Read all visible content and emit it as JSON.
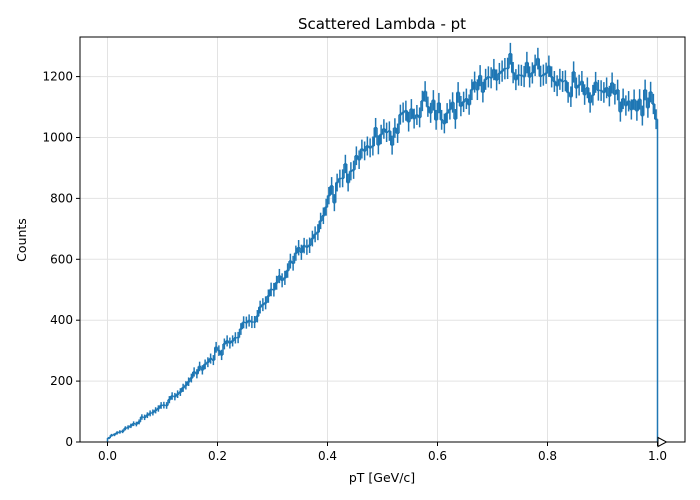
{
  "chart_data": {
    "type": "histogram",
    "title": "Scattered Lambda - pt",
    "xlabel": "pT [GeV/c]",
    "ylabel": "Counts",
    "xlim": [
      -0.05,
      1.05
    ],
    "ylim": [
      0,
      1330
    ],
    "x_ticks": [
      0.0,
      0.2,
      0.4,
      0.6,
      0.8,
      1.0
    ],
    "x_tick_labels": [
      "0.0",
      "0.2",
      "0.4",
      "0.6",
      "0.8",
      "1.0"
    ],
    "y_ticks": [
      0,
      200,
      400,
      600,
      800,
      1000,
      1200
    ],
    "y_tick_labels": [
      "0",
      "200",
      "400",
      "600",
      "800",
      "1000",
      "1200"
    ],
    "grid": true,
    "color": "#1f77b4",
    "overflow_marker": "open triangle at x = 1.0 on the x axis",
    "bins": {
      "start": 0.0,
      "end": 1.0,
      "count": 200,
      "anchor_x": [
        0.0,
        0.02,
        0.05,
        0.08,
        0.1,
        0.13,
        0.15,
        0.18,
        0.2,
        0.23,
        0.25,
        0.28,
        0.3,
        0.33,
        0.35,
        0.38,
        0.4,
        0.42,
        0.44,
        0.46,
        0.48,
        0.5,
        0.52,
        0.54,
        0.56,
        0.58,
        0.6,
        0.62,
        0.65,
        0.68,
        0.7,
        0.72,
        0.75,
        0.78,
        0.8,
        0.83,
        0.85,
        0.88,
        0.9,
        0.93,
        0.95,
        0.97,
        0.99,
        1.0
      ],
      "anchor_counts": [
        10,
        30,
        60,
        95,
        125,
        160,
        200,
        260,
        290,
        340,
        385,
        440,
        500,
        575,
        630,
        660,
        790,
        840,
        900,
        950,
        980,
        1000,
        1020,
        1050,
        1080,
        1110,
        1100,
        1090,
        1140,
        1180,
        1200,
        1210,
        1220,
        1220,
        1210,
        1190,
        1170,
        1150,
        1150,
        1130,
        1110,
        1100,
        1110,
        1040
      ]
    }
  }
}
